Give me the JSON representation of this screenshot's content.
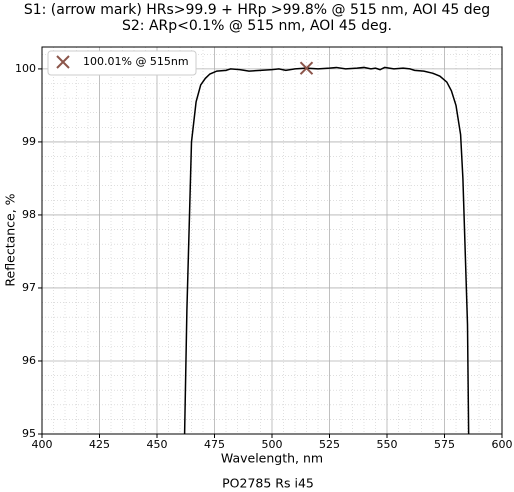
{
  "chart_data": {
    "type": "line",
    "title": [
      "S1: (arrow mark) HRs>99.9 + HRp >99.8% @ 515 nm, AOI 45 deg",
      "S2: ARp<0.1% @ 515 nm, AOI 45 deg."
    ],
    "x_label": "Wavelength, nm",
    "y_label": "Reflectance, %",
    "footer": "PO2785 Rs i45",
    "xlim": [
      400,
      600
    ],
    "ylim": [
      95,
      100.3
    ],
    "xticks": [
      400,
      425,
      450,
      475,
      500,
      525,
      550,
      575,
      600
    ],
    "yticks": [
      95,
      96,
      97,
      98,
      99,
      100
    ],
    "xminorticks": [
      405,
      410,
      415,
      420,
      430,
      435,
      440,
      445,
      455,
      460,
      465,
      470,
      480,
      485,
      490,
      495,
      505,
      510,
      515,
      520,
      530,
      535,
      540,
      545,
      555,
      560,
      565,
      570,
      580,
      585,
      590,
      595
    ],
    "yminorticks": [
      95.2,
      95.4,
      95.6,
      95.8,
      96.2,
      96.4,
      96.6,
      96.8,
      97.2,
      97.4,
      97.6,
      97.8,
      98.2,
      98.4,
      98.6,
      98.8,
      99.2,
      99.4,
      99.6,
      99.8,
      100.2
    ],
    "grid": true,
    "legend": "upper left",
    "series": [
      {
        "color": "#000000",
        "x": [
          462,
          463,
          465,
          467,
          469,
          471,
          473,
          476,
          480,
          482,
          486,
          490,
          495,
          500,
          503,
          506,
          510,
          515,
          520,
          525,
          528,
          532,
          537,
          540,
          543,
          545,
          547,
          549,
          553,
          557,
          560,
          562,
          566,
          570,
          573,
          576,
          578,
          580,
          582,
          583,
          584,
          585,
          585.5
        ],
        "values": [
          95,
          96.7,
          99.0,
          99.55,
          99.78,
          99.87,
          99.93,
          99.97,
          99.98,
          100.0,
          99.99,
          99.97,
          99.98,
          99.99,
          100.0,
          99.98,
          100.0,
          100.01,
          100.0,
          100.01,
          100.02,
          100.0,
          100.01,
          100.02,
          100.0,
          100.01,
          99.99,
          100.02,
          100.0,
          100.01,
          100.0,
          99.98,
          99.97,
          99.94,
          99.9,
          99.82,
          99.7,
          99.5,
          99.1,
          98.5,
          97.5,
          96.5,
          95
        ]
      },
      {
        "name": "100.01% @ 515nm",
        "color": "#8c564b",
        "marker": "x",
        "x": [
          515
        ],
        "values": [
          100.01
        ]
      }
    ]
  }
}
